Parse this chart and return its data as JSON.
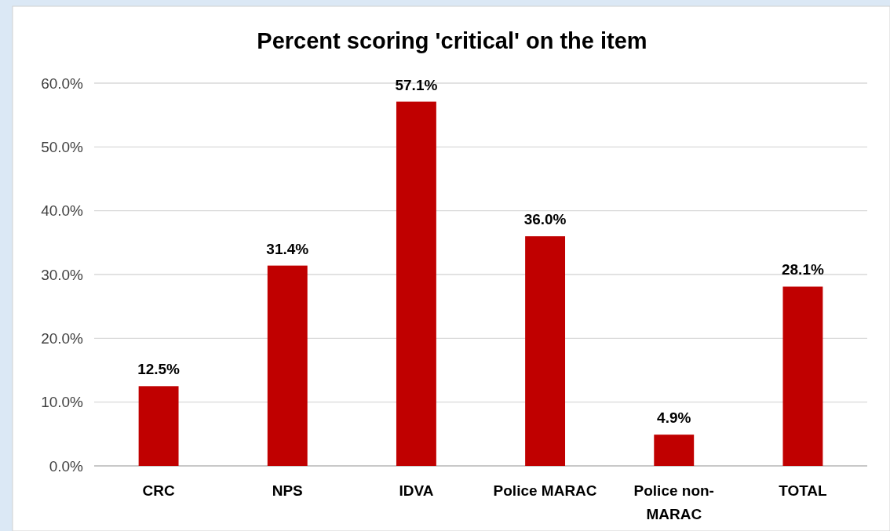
{
  "chart_data": {
    "type": "bar",
    "title": "Percent scoring 'critical' on the item",
    "categories": [
      "CRC",
      "NPS",
      "IDVA",
      "Police MARAC",
      "Police non-MARAC",
      "TOTAL"
    ],
    "values": [
      12.5,
      31.4,
      57.1,
      36.0,
      4.9,
      28.1
    ],
    "value_labels": [
      "12.5%",
      "31.4%",
      "57.1%",
      "36.0%",
      "4.9%",
      "28.1%"
    ],
    "color": "#c00000",
    "ylim": [
      0,
      60
    ],
    "yticks": [
      {
        "value": 0,
        "label": "0.0%"
      },
      {
        "value": 10,
        "label": "10.0%"
      },
      {
        "value": 20,
        "label": "20.0%"
      },
      {
        "value": 30,
        "label": "30.0%"
      },
      {
        "value": 40,
        "label": "40.0%"
      },
      {
        "value": 50,
        "label": "50.0%"
      },
      {
        "value": 60,
        "label": "60.0%"
      }
    ],
    "grid": "y"
  }
}
